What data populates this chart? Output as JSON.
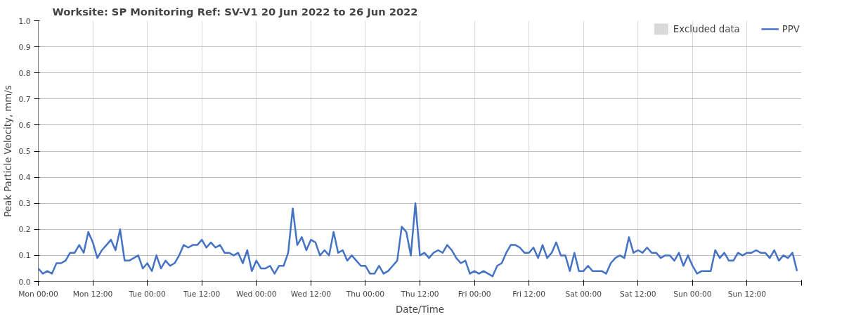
{
  "chart_data": {
    "type": "line",
    "title": "Worksite: SP    Monitoring Ref: SV-V1     20 Jun 2022 to 26 Jun 2022",
    "xlabel": "Date/Time",
    "ylabel": "Peak Particle Velocity, mm/s",
    "x": [
      "2022-06-20T00:00",
      "2022-06-20T01:00",
      "2022-06-20T02:00",
      "2022-06-20T03:00",
      "2022-06-20T04:00",
      "2022-06-20T05:00",
      "2022-06-20T06:00",
      "2022-06-20T07:00",
      "2022-06-20T08:00",
      "2022-06-20T09:00",
      "2022-06-20T10:00",
      "2022-06-20T11:00",
      "2022-06-20T12:00",
      "2022-06-20T13:00",
      "2022-06-20T14:00",
      "2022-06-20T15:00",
      "2022-06-20T16:00",
      "2022-06-20T17:00",
      "2022-06-20T18:00",
      "2022-06-20T19:00",
      "2022-06-20T20:00",
      "2022-06-20T21:00",
      "2022-06-20T22:00",
      "2022-06-20T23:00",
      "2022-06-21T00:00",
      "2022-06-21T01:00",
      "2022-06-21T02:00",
      "2022-06-21T03:00",
      "2022-06-21T04:00",
      "2022-06-21T05:00",
      "2022-06-21T06:00",
      "2022-06-21T07:00",
      "2022-06-21T08:00",
      "2022-06-21T09:00",
      "2022-06-21T10:00",
      "2022-06-21T11:00",
      "2022-06-21T12:00",
      "2022-06-21T13:00",
      "2022-06-21T14:00",
      "2022-06-21T15:00",
      "2022-06-21T16:00",
      "2022-06-21T17:00",
      "2022-06-21T18:00",
      "2022-06-21T19:00",
      "2022-06-21T20:00",
      "2022-06-21T21:00",
      "2022-06-21T22:00",
      "2022-06-21T23:00",
      "2022-06-22T00:00",
      "2022-06-22T01:00",
      "2022-06-22T02:00",
      "2022-06-22T03:00",
      "2022-06-22T04:00",
      "2022-06-22T05:00",
      "2022-06-22T06:00",
      "2022-06-22T07:00",
      "2022-06-22T08:00",
      "2022-06-22T09:00",
      "2022-06-22T10:00",
      "2022-06-22T11:00",
      "2022-06-22T12:00",
      "2022-06-22T13:00",
      "2022-06-22T14:00",
      "2022-06-22T15:00",
      "2022-06-22T16:00",
      "2022-06-22T17:00",
      "2022-06-22T18:00",
      "2022-06-22T19:00",
      "2022-06-22T20:00",
      "2022-06-22T21:00",
      "2022-06-22T22:00",
      "2022-06-22T23:00",
      "2022-06-23T00:00",
      "2022-06-23T01:00",
      "2022-06-23T02:00",
      "2022-06-23T03:00",
      "2022-06-23T04:00",
      "2022-06-23T05:00",
      "2022-06-23T06:00",
      "2022-06-23T07:00",
      "2022-06-23T08:00",
      "2022-06-23T09:00",
      "2022-06-23T10:00",
      "2022-06-23T11:00",
      "2022-06-23T12:00",
      "2022-06-23T13:00",
      "2022-06-23T14:00",
      "2022-06-23T15:00",
      "2022-06-23T16:00",
      "2022-06-23T17:00",
      "2022-06-23T18:00",
      "2022-06-23T19:00",
      "2022-06-23T20:00",
      "2022-06-23T21:00",
      "2022-06-23T22:00",
      "2022-06-23T23:00",
      "2022-06-24T00:00",
      "2022-06-24T01:00",
      "2022-06-24T02:00",
      "2022-06-24T03:00",
      "2022-06-24T04:00",
      "2022-06-24T05:00",
      "2022-06-24T06:00",
      "2022-06-24T07:00",
      "2022-06-24T08:00",
      "2022-06-24T09:00",
      "2022-06-24T10:00",
      "2022-06-24T11:00",
      "2022-06-24T12:00",
      "2022-06-24T13:00",
      "2022-06-24T14:00",
      "2022-06-24T15:00",
      "2022-06-24T16:00",
      "2022-06-24T17:00",
      "2022-06-24T18:00",
      "2022-06-24T19:00",
      "2022-06-24T20:00",
      "2022-06-24T21:00",
      "2022-06-24T22:00",
      "2022-06-24T23:00",
      "2022-06-25T00:00",
      "2022-06-25T01:00",
      "2022-06-25T02:00",
      "2022-06-25T03:00",
      "2022-06-25T04:00",
      "2022-06-25T05:00",
      "2022-06-25T06:00",
      "2022-06-25T07:00",
      "2022-06-25T08:00",
      "2022-06-25T09:00",
      "2022-06-25T10:00",
      "2022-06-25T11:00",
      "2022-06-25T12:00",
      "2022-06-25T13:00",
      "2022-06-25T14:00",
      "2022-06-25T15:00",
      "2022-06-25T16:00",
      "2022-06-25T17:00",
      "2022-06-25T18:00",
      "2022-06-25T19:00",
      "2022-06-25T20:00",
      "2022-06-25T21:00",
      "2022-06-25T22:00",
      "2022-06-25T23:00",
      "2022-06-26T00:00",
      "2022-06-26T01:00",
      "2022-06-26T02:00",
      "2022-06-26T03:00",
      "2022-06-26T04:00",
      "2022-06-26T05:00",
      "2022-06-26T06:00",
      "2022-06-26T07:00",
      "2022-06-26T08:00",
      "2022-06-26T09:00",
      "2022-06-26T10:00",
      "2022-06-26T11:00",
      "2022-06-26T12:00",
      "2022-06-26T13:00",
      "2022-06-26T14:00",
      "2022-06-26T15:00",
      "2022-06-26T16:00",
      "2022-06-26T17:00",
      "2022-06-26T18:00",
      "2022-06-26T19:00",
      "2022-06-26T20:00",
      "2022-06-26T21:00",
      "2022-06-26T22:00",
      "2022-06-26T23:00"
    ],
    "series": [
      {
        "name": "Excluded data",
        "type": "area",
        "color": "#d9d9d9",
        "values": [
          null,
          null,
          null,
          null,
          null,
          null,
          null,
          null,
          null,
          null,
          null,
          null,
          null,
          null,
          null,
          null,
          null,
          null,
          null,
          null,
          null,
          null,
          null,
          null,
          null,
          null,
          null,
          null,
          null,
          null,
          null,
          null,
          null,
          null,
          null,
          null,
          null,
          null,
          null,
          null,
          null,
          null,
          null,
          null,
          null,
          null,
          null,
          null,
          null,
          null,
          null,
          null,
          null,
          null,
          null,
          null,
          null,
          null,
          null,
          null,
          null,
          null,
          null,
          null,
          null,
          null,
          null,
          null,
          null,
          null,
          null,
          null,
          null,
          null,
          null,
          null,
          null,
          null,
          null,
          null,
          null,
          null,
          null,
          null,
          null,
          null,
          null,
          null,
          null,
          null,
          null,
          null,
          null,
          null,
          null,
          null,
          null,
          null,
          null,
          null,
          null,
          null,
          null,
          null,
          null,
          null,
          null,
          null,
          null,
          null,
          null,
          null,
          null,
          null,
          null,
          null,
          null,
          null,
          null,
          null,
          null,
          null,
          null,
          null,
          null,
          null,
          null,
          null,
          null,
          null,
          null,
          null,
          null,
          null,
          null,
          null,
          null,
          null,
          null,
          null,
          null,
          null,
          null,
          null,
          null,
          null,
          null,
          null,
          null,
          null,
          null,
          null,
          null,
          null,
          null,
          null,
          null,
          null,
          null,
          null,
          null,
          null,
          null,
          null,
          null,
          null,
          null,
          null
        ]
      },
      {
        "name": "PPV",
        "color": "#4472c4",
        "values": [
          0.05,
          0.03,
          0.04,
          0.03,
          0.07,
          0.07,
          0.08,
          0.11,
          0.11,
          0.14,
          0.11,
          0.19,
          0.15,
          0.09,
          0.12,
          0.14,
          0.16,
          0.12,
          0.2,
          0.08,
          0.08,
          0.09,
          0.1,
          0.05,
          0.07,
          0.04,
          0.1,
          0.05,
          0.08,
          0.06,
          0.07,
          0.1,
          0.14,
          0.13,
          0.14,
          0.14,
          0.16,
          0.13,
          0.15,
          0.13,
          0.14,
          0.11,
          0.11,
          0.1,
          0.11,
          0.07,
          0.12,
          0.04,
          0.08,
          0.05,
          0.05,
          0.06,
          0.03,
          0.06,
          0.06,
          0.11,
          0.28,
          0.14,
          0.17,
          0.12,
          0.16,
          0.15,
          0.1,
          0.12,
          0.1,
          0.19,
          0.11,
          0.12,
          0.08,
          0.1,
          0.08,
          0.06,
          0.06,
          0.03,
          0.03,
          0.06,
          0.03,
          0.04,
          0.06,
          0.08,
          0.21,
          0.19,
          0.1,
          0.3,
          0.1,
          0.11,
          0.09,
          0.11,
          0.12,
          0.11,
          0.14,
          0.12,
          0.09,
          0.07,
          0.08,
          0.03,
          0.04,
          0.03,
          0.04,
          0.03,
          0.02,
          0.06,
          0.07,
          0.11,
          0.14,
          0.14,
          0.13,
          0.11,
          0.11,
          0.13,
          0.09,
          0.14,
          0.09,
          0.11,
          0.15,
          0.1,
          0.1,
          0.04,
          0.11,
          0.04,
          0.04,
          0.06,
          0.04,
          0.04,
          0.04,
          0.03,
          0.07,
          0.09,
          0.1,
          0.09,
          0.17,
          0.11,
          0.12,
          0.11,
          0.13,
          0.11,
          0.11,
          0.09,
          0.1,
          0.1,
          0.08,
          0.11,
          0.06,
          0.1,
          0.06,
          0.03,
          0.04,
          0.04,
          0.04,
          0.12,
          0.09,
          0.11,
          0.08,
          0.08,
          0.11,
          0.1,
          0.11,
          0.11,
          0.12,
          0.11,
          0.11,
          0.09,
          0.12,
          0.08,
          0.1,
          0.09,
          0.11,
          0.04
        ]
      }
    ],
    "xlim": [
      "2022-06-20T00:00",
      "2022-06-27T00:00"
    ],
    "xticks": [
      {
        "value": "2022-06-20T00:00",
        "label": "Mon 00:00"
      },
      {
        "value": "2022-06-20T12:00",
        "label": "Mon 12:00"
      },
      {
        "value": "2022-06-21T00:00",
        "label": "Tue 00:00"
      },
      {
        "value": "2022-06-21T12:00",
        "label": "Tue 12:00"
      },
      {
        "value": "2022-06-22T00:00",
        "label": "Wed 00:00"
      },
      {
        "value": "2022-06-22T12:00",
        "label": "Wed 12:00"
      },
      {
        "value": "2022-06-23T00:00",
        "label": "Thu 00:00"
      },
      {
        "value": "2022-06-23T12:00",
        "label": "Thu 12:00"
      },
      {
        "value": "2022-06-24T00:00",
        "label": "Fri 00:00"
      },
      {
        "value": "2022-06-24T12:00",
        "label": "Fri 12:00"
      },
      {
        "value": "2022-06-25T00:00",
        "label": "Sat 00:00"
      },
      {
        "value": "2022-06-25T12:00",
        "label": "Sat 12:00"
      },
      {
        "value": "2022-06-26T00:00",
        "label": "Sun 00:00"
      },
      {
        "value": "2022-06-26T12:00",
        "label": "Sun 12:00"
      },
      {
        "value": "2022-06-27T00:00",
        "label": null
      }
    ],
    "ylim": [
      0,
      1
    ],
    "yticks": [
      {
        "value": 0,
        "label": "0.0"
      },
      0.1,
      0.2,
      0.3,
      0.4,
      0.5,
      0.6,
      0.7,
      0.8,
      0.9,
      {
        "value": 1,
        "label": "1.0"
      }
    ],
    "grid": true,
    "legend": "top right",
    "marker": "none",
    "line_style": "solid"
  }
}
